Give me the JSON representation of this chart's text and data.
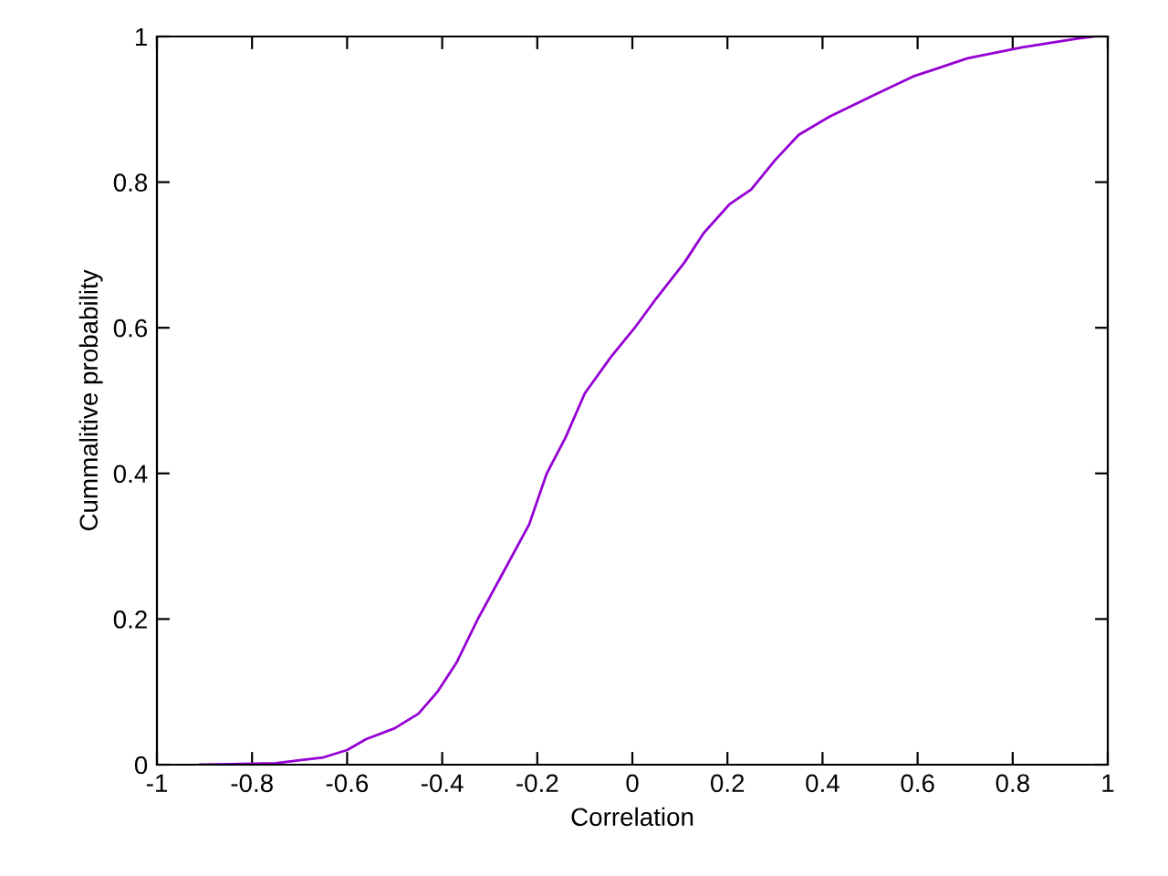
{
  "chart_data": {
    "type": "line",
    "xlabel": "Correlation",
    "ylabel": "Cummalitive probability",
    "xlim": [
      -1,
      1
    ],
    "ylim": [
      0,
      1
    ],
    "xticks": [
      -1,
      -0.8,
      -0.6,
      -0.4,
      -0.2,
      0,
      0.2,
      0.4,
      0.6,
      0.8,
      1
    ],
    "yticks": [
      0,
      0.2,
      0.4,
      0.6,
      0.8,
      1
    ],
    "grid": false,
    "legend": false,
    "series": [
      {
        "color": "#9400d3",
        "x": [
          -0.91,
          -0.75,
          -0.7,
          -0.65,
          -0.6,
          -0.56,
          -0.5,
          -0.45,
          -0.41,
          -0.37,
          -0.325,
          -0.275,
          -0.217,
          -0.18,
          -0.14,
          -0.1,
          -0.045,
          0.005,
          0.05,
          0.11,
          0.15,
          0.205,
          0.25,
          0.3,
          0.35,
          0.415,
          0.51,
          0.59,
          0.705,
          0.82,
          0.935,
          0.97
        ],
        "values": [
          0,
          0.002,
          0.006,
          0.01,
          0.02,
          0.035,
          0.05,
          0.07,
          0.1,
          0.14,
          0.2,
          0.26,
          0.33,
          0.4,
          0.45,
          0.51,
          0.56,
          0.6,
          0.64,
          0.69,
          0.73,
          0.77,
          0.79,
          0.83,
          0.865,
          0.89,
          0.92,
          0.945,
          0.97,
          0.985,
          0.997,
          1
        ]
      }
    ]
  }
}
